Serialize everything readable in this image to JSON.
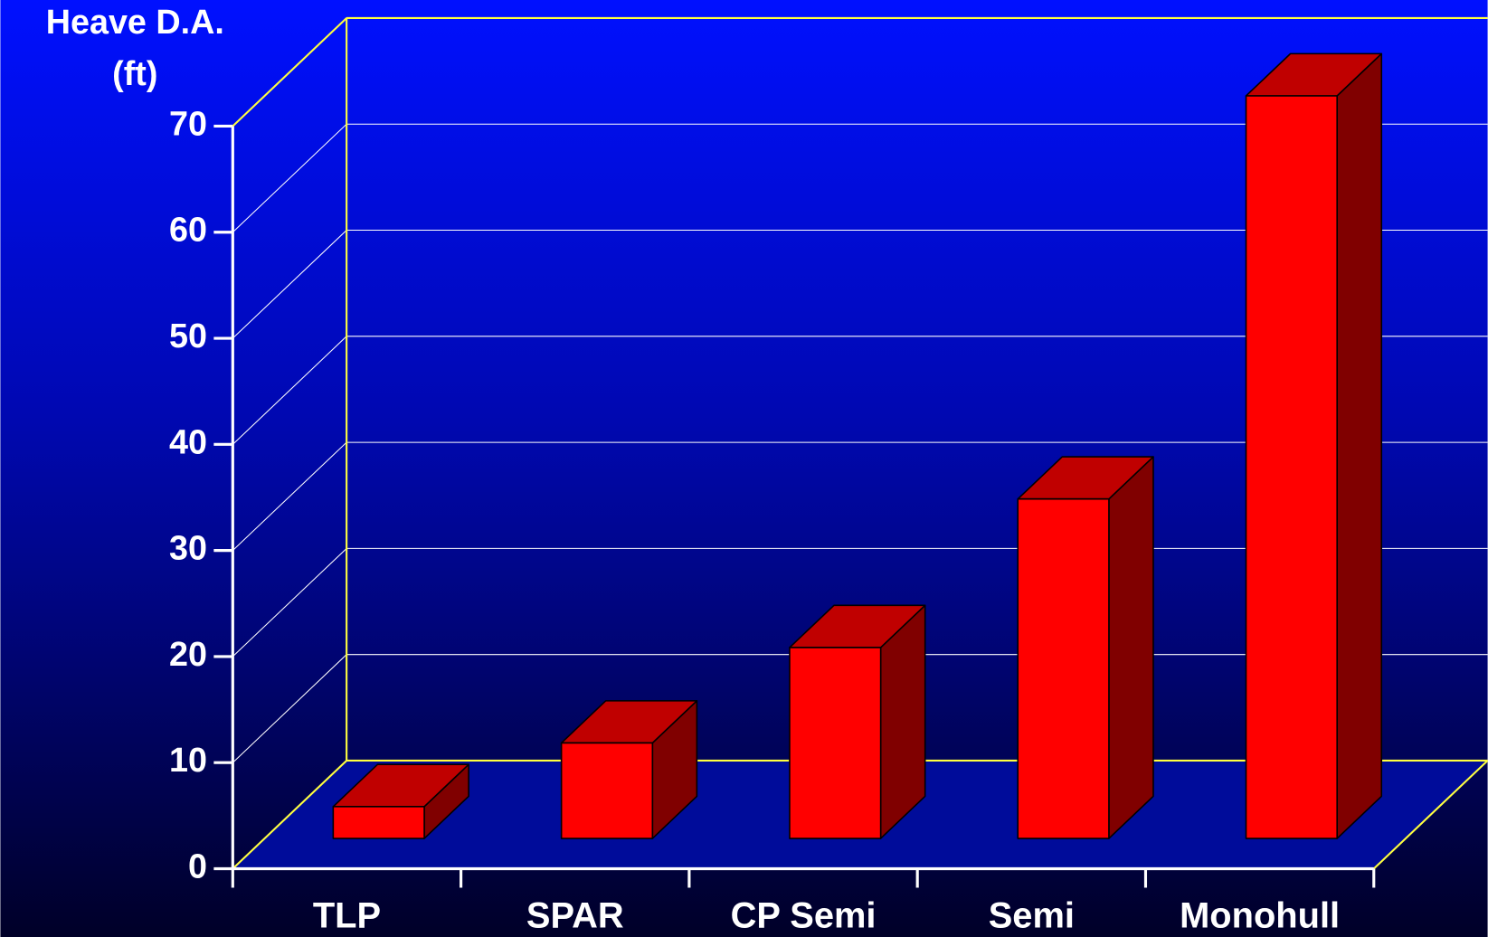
{
  "chart_data": {
    "type": "bar3d",
    "ylabel": [
      "Heave D.A.",
      "(ft)"
    ],
    "categories": [
      "TLP",
      "SPAR",
      "CP Semi",
      "Semi",
      "Monohull"
    ],
    "values": [
      3,
      9,
      18,
      32,
      70
    ],
    "color": "#ff0000",
    "ylim": [
      0,
      70
    ],
    "yticks": [
      0,
      10,
      20,
      30,
      40,
      50,
      60,
      70
    ],
    "grid": true
  }
}
